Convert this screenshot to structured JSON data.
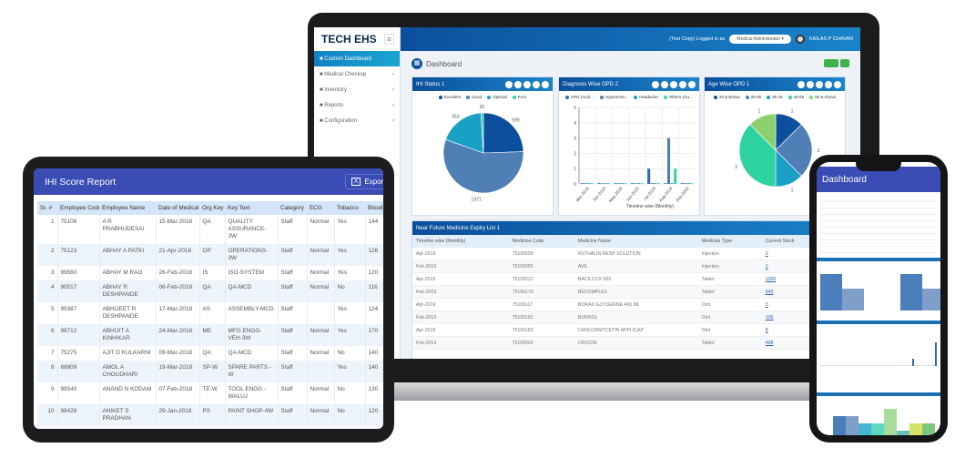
{
  "laptop": {
    "brand": "TECH EHS",
    "sidebar": [
      {
        "label": "Custom Dashboard",
        "icon": "dashboard-icon"
      },
      {
        "label": "Medical Checkup",
        "icon": "camera-icon"
      },
      {
        "label": "Inventory",
        "icon": "users-icon"
      },
      {
        "label": "Reports",
        "icon": "search-icon"
      },
      {
        "label": "Configuration",
        "icon": "gears-icon"
      }
    ],
    "header": {
      "logged_text": "(Test Copy) Logged in as",
      "role": "Medical Administrator",
      "user": "KAILAS P CHAVAN"
    },
    "page_title": "Dashboard",
    "cards": [
      "IHI Status 1",
      "Diagnosis Wise OPD 2",
      "Age Wise OPD 1"
    ],
    "expiry": {
      "title": "Near Future Medicine Expiry List 1",
      "columns": [
        "Timeline wise (Monthly)",
        "Medicine Code",
        "Medicine Name",
        "Medicine Type",
        "Current Stock",
        "Expiry D"
      ],
      "rows": [
        [
          "Apr-2019",
          "75109509",
          "ASTHALIN RESP SOLUTION",
          "Injection",
          "3",
          "Apr-201"
        ],
        [
          "Feb-2019",
          "75109055",
          "AVIL",
          "Injection",
          "1",
          "Feb-201"
        ],
        [
          "Apr-2019",
          "75109522",
          "BACILCOX 500",
          "Tablet",
          "1300",
          "Feb-201"
        ],
        [
          "Feb-2019",
          "75109170",
          "BECOMPLEX",
          "Tablet",
          "645",
          "Apr-201"
        ],
        [
          "Apr-2019",
          "75109117",
          "BORAX GLYCERINE 400 ML",
          "Oint",
          "3",
          "Jun-201"
        ],
        [
          "Feb-2019",
          "75109182",
          "BURNOL",
          "Oint",
          "105",
          "Mar-201"
        ],
        [
          "Apr-2019",
          "75109183",
          "CHOLORMYCETIN APPLICAP",
          "Oint",
          "8",
          "Jan-201"
        ],
        [
          "Feb-2019",
          "75109002",
          "CROCIN",
          "Tablet",
          "498",
          "Aug-201"
        ]
      ]
    }
  },
  "chart_data": [
    {
      "type": "pie",
      "title": "IHI Status 1",
      "labels": [
        "Excellent",
        "Good",
        "Optimal",
        "Poor"
      ],
      "values": [
        599,
        1371,
        453,
        25
      ],
      "colors": [
        "#0d4f9c",
        "#4f7fb5",
        "#1aa0c4",
        "#2ed1a0"
      ],
      "legend": "top"
    },
    {
      "type": "bar",
      "title": "Diagnosis Wise OPD 2",
      "xlabel": "Timeline wise (Monthly)",
      "categories": [
        "Mar-2018",
        "Apr-2018",
        "May-2018",
        "Jun-2018",
        "Jul-2018",
        "Aug-2018",
        "Sep-2018"
      ],
      "series": [
        {
          "name": "APD (Acid ...",
          "values": [
            0,
            0,
            0,
            0,
            1,
            0,
            0
          ]
        },
        {
          "name": "Hypertensi...",
          "values": [
            0,
            0,
            0,
            0,
            0,
            3,
            0
          ]
        },
        {
          "name": "Headache",
          "values": [
            0,
            0,
            0,
            0,
            0,
            0,
            0
          ]
        },
        {
          "name": "Others (Gu...",
          "values": [
            0,
            0,
            0,
            0,
            0,
            1,
            0
          ]
        }
      ],
      "colors": [
        "#2f6db3",
        "#4f7fb5",
        "#1aa0c4",
        "#40d0b0"
      ],
      "ylim": [
        0,
        5
      ],
      "yticks": [
        "0",
        "1",
        "2",
        "3",
        "4",
        "5"
      ],
      "grid": true,
      "legend": "top"
    },
    {
      "type": "pie",
      "title": "Age Wise OPD 1",
      "labels": [
        "25 & Below",
        "26-35",
        "36-45",
        "46-55",
        "56 & Above"
      ],
      "values": [
        1,
        2,
        1,
        3,
        1
      ],
      "colors": [
        "#0d4f9c",
        "#4f7fb5",
        "#1aa0c4",
        "#2ed1a0",
        "#8ccf6e"
      ],
      "legend": "top"
    }
  ],
  "tablet": {
    "title": "IHI Score Report",
    "export_label": "Export t",
    "columns": [
      "Sr. #",
      "Employee Code",
      "Employee Name",
      "Date of Medical",
      "Org Key",
      "Key Text",
      "Category",
      "ECG",
      "Tobacco",
      "Blood Pressu"
    ],
    "rows": [
      [
        "1",
        "75108",
        "A R PRABHUDESAI",
        "15-Mar-2018",
        "QA",
        "QUALITY ASSURANCE-3W",
        "Staff",
        "Normal",
        "Yes",
        "144"
      ],
      [
        "2",
        "75123",
        "ABHAY A PATKI",
        "21-Apr-2018",
        "OP",
        "OPERATIONS-3W",
        "Staff",
        "Normal",
        "Yes",
        "126"
      ],
      [
        "3",
        "99560",
        "ABHAY M RAO",
        "26-Feb-2018",
        "IS",
        "ISO-SYSTEM",
        "Staff",
        "Normal",
        "Yes",
        "120"
      ],
      [
        "4",
        "90517",
        "ABHAY R DESHPANDE",
        "06-Feb-2018",
        "QA",
        "QA-MCD",
        "Staff",
        "Normal",
        "No",
        "116"
      ],
      [
        "5",
        "99387",
        "ABHIJEET R DESHPANDE",
        "17-Mar-2018",
        "AS",
        "ASSEMBLY-MCD",
        "Staff",
        "",
        "Yes",
        "124"
      ],
      [
        "6",
        "99712",
        "ABHIJIT A KINHIKAR",
        "24-Mar-2018",
        "ME",
        "MFG ENGG-VEH-3W",
        "Staff",
        "Normal",
        "Yes",
        "170"
      ],
      [
        "7",
        "75275",
        "AJIT D KULKARNI",
        "09-Mar-2018",
        "QA",
        "QA-MCD",
        "Staff",
        "Normal",
        "No",
        "140"
      ],
      [
        "8",
        "68809",
        "AMOL A CHOUDHARI",
        "19-Mar-2018",
        "SP-W",
        "SPARE PARTS - W",
        "Staff",
        "",
        "Yes",
        "140"
      ],
      [
        "9",
        "99540",
        "ANAND N KODAM",
        "07-Feb-2018",
        "TE-W",
        "TOOL ENGG - WALUJ",
        "Staff",
        "Normal",
        "No",
        "130"
      ],
      [
        "10",
        "98428",
        "ANIKET S PRADHAN",
        "29-Jan-2018",
        "PS",
        "PAINT SHOP-4W",
        "Staff",
        "Normal",
        "No",
        "120"
      ]
    ]
  },
  "phone": {
    "title": "Dashboard"
  }
}
